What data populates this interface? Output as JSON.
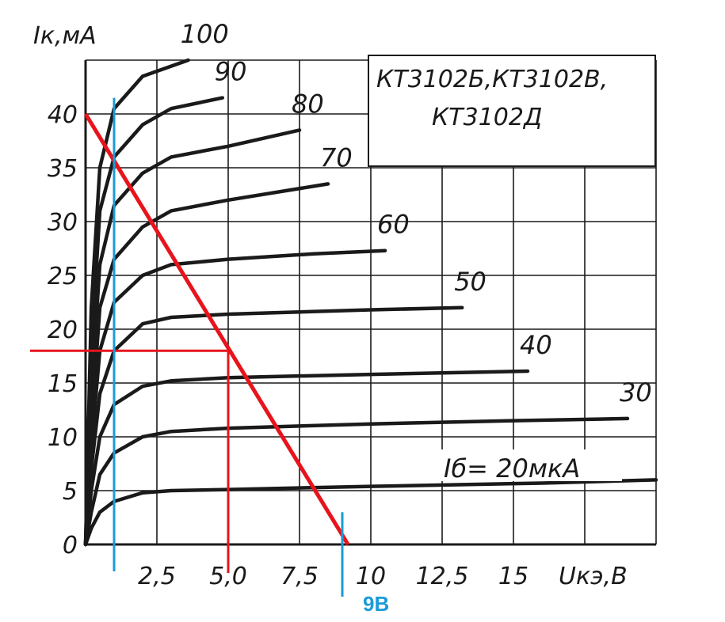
{
  "chart_data": {
    "type": "line",
    "title_lines": [
      "КТ3102Б,КТ3102В,",
      "КТ3102Д"
    ],
    "xlabel": "Uкэ,В",
    "ylabel": "Iк,мА",
    "xlim": [
      0,
      20
    ],
    "ylim": [
      0,
      45
    ],
    "x_ticks": [
      "2,5",
      "5,0",
      "7,5",
      "10",
      "12,5",
      "15"
    ],
    "y_ticks": [
      "0",
      "5",
      "10",
      "15",
      "20",
      "25",
      "30",
      "35",
      "40"
    ],
    "grid": true,
    "base_current_label": "Iб= 20мкА",
    "series": [
      {
        "name": "20",
        "x": [
          0,
          0.2,
          0.5,
          1,
          2,
          3,
          5,
          10,
          16,
          20
        ],
        "y": [
          0,
          1.5,
          3,
          4,
          4.8,
          5.0,
          5.1,
          5.4,
          5.7,
          6.0
        ]
      },
      {
        "name": "30",
        "x": [
          0,
          0.2,
          0.5,
          1,
          2,
          3,
          5,
          10,
          15,
          19
        ],
        "y": [
          0,
          3,
          6.5,
          8.5,
          10,
          10.5,
          10.8,
          11.2,
          11.5,
          11.7
        ]
      },
      {
        "name": "40",
        "x": [
          0,
          0.2,
          0.5,
          1,
          2,
          3,
          5,
          10,
          15.5
        ],
        "y": [
          0,
          5,
          10,
          13,
          14.7,
          15.2,
          15.5,
          15.8,
          16.1
        ]
      },
      {
        "name": "50",
        "x": [
          0,
          0.2,
          0.5,
          1,
          2,
          3,
          5,
          10,
          13.2
        ],
        "y": [
          0,
          7,
          14,
          18,
          20.5,
          21.1,
          21.4,
          21.8,
          22.0
        ]
      },
      {
        "name": "60",
        "x": [
          0,
          0.2,
          0.5,
          1,
          2,
          3,
          5,
          8,
          10.5
        ],
        "y": [
          0,
          9,
          18,
          22.5,
          25,
          26,
          26.5,
          27,
          27.3
        ]
      },
      {
        "name": "70",
        "x": [
          0,
          0.2,
          0.5,
          1,
          2,
          3,
          5,
          8.5
        ],
        "y": [
          0,
          11,
          22,
          26.5,
          29.5,
          31,
          32,
          33.5
        ]
      },
      {
        "name": "80",
        "x": [
          0,
          0.2,
          0.5,
          1,
          2,
          3,
          5,
          7.5
        ],
        "y": [
          0,
          14,
          26,
          31.5,
          34.5,
          36,
          37,
          38.5
        ]
      },
      {
        "name": "90",
        "x": [
          0,
          0.2,
          0.5,
          1,
          2,
          3,
          4.8
        ],
        "y": [
          0,
          18,
          31,
          36,
          39,
          40.5,
          41.5
        ]
      },
      {
        "name": "100",
        "x": [
          0,
          0.2,
          0.5,
          1,
          2,
          3.6
        ],
        "y": [
          0,
          22,
          35,
          40.5,
          43.5,
          45
        ]
      }
    ],
    "annotations": {
      "load_line": {
        "x": [
          0,
          9.2
        ],
        "y": [
          40,
          0
        ]
      },
      "operating_point": {
        "x": 5.0,
        "y": 18
      },
      "blue_line_x": 1.0,
      "blue_marker": {
        "x": 9.0,
        "label": "9В"
      }
    },
    "colors": {
      "curves": "#1a1a1a",
      "grid": "#1a1a1a",
      "load_line": "#e8141c",
      "blue": "#1b9bd7"
    }
  }
}
